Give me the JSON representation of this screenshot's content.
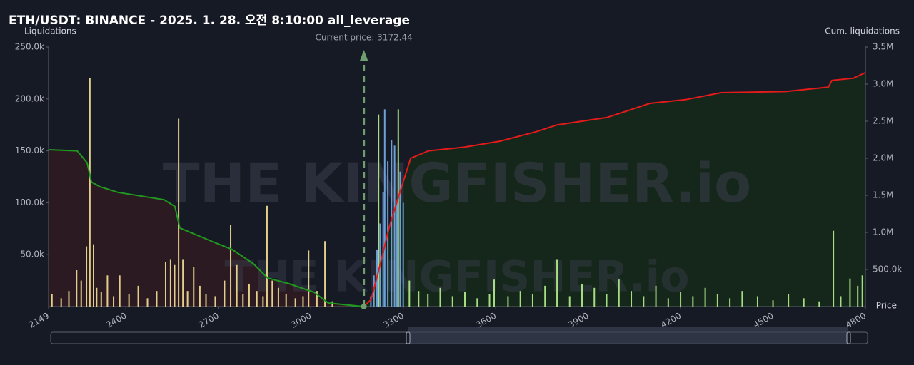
{
  "chart_data": {
    "type": "bar",
    "title": "ETH/USDT: BINANCE - 2025. 1. 28. 오전 8:10:00 all_leverage",
    "y_label": "Liquidations",
    "y2_label": "Cum. liquidations",
    "x_label": "Price",
    "annotation": "Current price: 3172.44",
    "current_price": 3172.44,
    "watermark": "THE KINGFISHER.io",
    "xlim": [
      2149,
      4800
    ],
    "xticks": [
      2149,
      2400,
      2700,
      3000,
      3300,
      3600,
      3900,
      4200,
      4500,
      4800
    ],
    "ylim": [
      0,
      250000
    ],
    "yticks": [
      {
        "value": 50000,
        "label": "50.0k"
      },
      {
        "value": 100000,
        "label": "100.0k"
      },
      {
        "value": 150000,
        "label": "150.0k"
      },
      {
        "value": 200000,
        "label": "200.0k"
      },
      {
        "value": 250000,
        "label": "250.0k"
      }
    ],
    "y2lim": [
      0,
      3500000
    ],
    "y2ticks": [
      {
        "value": 500000,
        "label": "500.0k"
      },
      {
        "value": 1000000,
        "label": "1.0M"
      },
      {
        "value": 1500000,
        "label": "1.5M"
      },
      {
        "value": 2000000,
        "label": "2.0M"
      },
      {
        "value": 2500000,
        "label": "2.5M"
      },
      {
        "value": 3000000,
        "label": "3.0M"
      },
      {
        "value": 3500000,
        "label": "3.5M"
      }
    ],
    "series": [
      {
        "type": "bar",
        "color": "#e3cf8c",
        "x": [
          2160,
          2190,
          2215,
          2240,
          2255,
          2272,
          2283,
          2295,
          2305,
          2320,
          2340,
          2360,
          2380,
          2410,
          2440,
          2470,
          2500,
          2529,
          2545,
          2558,
          2571,
          2585,
          2600,
          2620,
          2640,
          2660,
          2690,
          2720,
          2740,
          2760,
          2780,
          2800,
          2825,
          2845,
          2858,
          2875,
          2895,
          2920,
          2950,
          2975,
          2993,
          3020,
          3046,
          3070
        ],
        "values": [
          12000,
          8000,
          15000,
          35000,
          25000,
          58000,
          220000,
          60000,
          18000,
          14000,
          30000,
          10000,
          30000,
          12000,
          20000,
          8000,
          15000,
          43000,
          45000,
          40000,
          181000,
          45000,
          15000,
          38000,
          20000,
          12000,
          10000,
          25000,
          79000,
          40000,
          12000,
          22000,
          15000,
          10000,
          97000,
          25000,
          18000,
          12000,
          8000,
          10000,
          54000,
          15000,
          63000,
          5000
        ]
      },
      {
        "type": "bar",
        "color": "#6e9fd6",
        "x": [
          3195,
          3205,
          3215,
          3225,
          3235,
          3240,
          3250,
          3262,
          3272,
          3280,
          3290,
          3300
        ],
        "values": [
          10000,
          30000,
          55000,
          80000,
          110000,
          190000,
          140000,
          160000,
          155000,
          100000,
          130000,
          100000
        ]
      },
      {
        "type": "bar",
        "color": "#a6dc82",
        "x": [
          3220,
          3284,
          3320,
          3350,
          3380,
          3420,
          3460,
          3500,
          3540,
          3580,
          3595,
          3640,
          3680,
          3720,
          3760,
          3799,
          3840,
          3880,
          3920,
          3960,
          4000,
          4040,
          4080,
          4120,
          4160,
          4200,
          4240,
          4280,
          4320,
          4360,
          4400,
          4450,
          4500,
          4550,
          4600,
          4650,
          4696,
          4720,
          4750,
          4775,
          4790
        ],
        "values": [
          185000,
          190000,
          25000,
          15000,
          12000,
          18000,
          10000,
          14000,
          8000,
          12000,
          26000,
          10000,
          15000,
          12000,
          20000,
          45000,
          10000,
          22000,
          18000,
          12000,
          26000,
          15000,
          10000,
          20000,
          8000,
          14000,
          10000,
          18000,
          12000,
          8000,
          15000,
          10000,
          6000,
          12000,
          8000,
          5000,
          73000,
          10000,
          27000,
          20000,
          30000
        ]
      },
      {
        "type": "line",
        "axis": "y2",
        "color": "#1f9a1f",
        "fill": "#2c1a22",
        "x": [
          2149,
          2242,
          2274,
          2288,
          2316,
          2374,
          2524,
          2559,
          2575,
          2687,
          2745,
          2814,
          2860,
          2930,
          3011,
          3057,
          3172
        ],
        "values": [
          2115000,
          2100000,
          1940000,
          1680000,
          1615000,
          1540000,
          1440000,
          1350000,
          1060000,
          865000,
          770000,
          577000,
          385000,
          308000,
          192000,
          48000,
          0
        ]
      },
      {
        "type": "line",
        "axis": "y2",
        "color": "#e31b1b",
        "fill": "#15261b",
        "x": [
          3172,
          3196,
          3220,
          3254,
          3289,
          3324,
          3382,
          3498,
          3613,
          3729,
          3799,
          3961,
          4031,
          4100,
          4216,
          4332,
          4541,
          4680,
          4691,
          4761,
          4800
        ],
        "values": [
          0,
          96000,
          480000,
          1060000,
          1540000,
          2000000,
          2100000,
          2150000,
          2230000,
          2355000,
          2450000,
          2550000,
          2645000,
          2740000,
          2790000,
          2885000,
          2900000,
          2960000,
          3050000,
          3080000,
          3155000
        ]
      }
    ]
  }
}
